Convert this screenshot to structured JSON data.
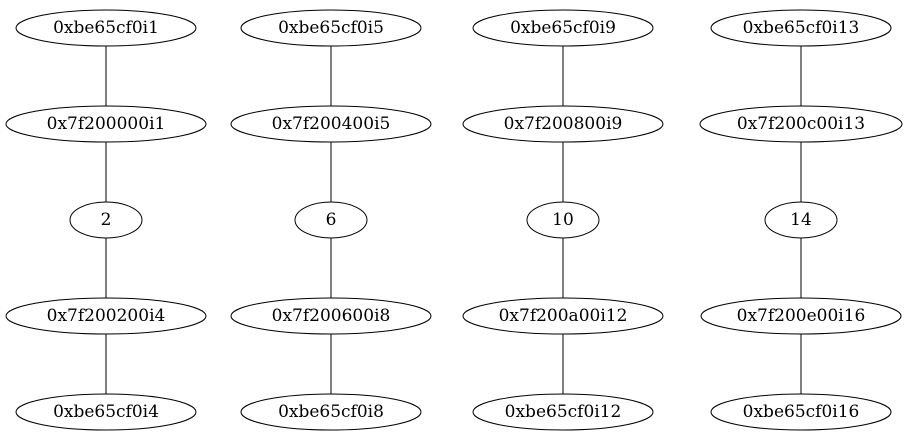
{
  "graph": {
    "columns": [
      {
        "nodes": [
          {
            "label": "0xbe65cf0i1"
          },
          {
            "label": "0x7f200000i1"
          },
          {
            "label": "2"
          },
          {
            "label": "0x7f200200i4"
          },
          {
            "label": "0xbe65cf0i4"
          }
        ]
      },
      {
        "nodes": [
          {
            "label": "0xbe65cf0i5"
          },
          {
            "label": "0x7f200400i5"
          },
          {
            "label": "6"
          },
          {
            "label": "0x7f200600i8"
          },
          {
            "label": "0xbe65cf0i8"
          }
        ]
      },
      {
        "nodes": [
          {
            "label": "0xbe65cf0i9"
          },
          {
            "label": "0x7f200800i9"
          },
          {
            "label": "10"
          },
          {
            "label": "0x7f200a00i12"
          },
          {
            "label": "0xbe65cf0i12"
          }
        ]
      },
      {
        "nodes": [
          {
            "label": "0xbe65cf0i13"
          },
          {
            "label": "0x7f200c00i13"
          },
          {
            "label": "14"
          },
          {
            "label": "0x7f200e00i16"
          },
          {
            "label": "0xbe65cf0i16"
          }
        ]
      }
    ]
  }
}
